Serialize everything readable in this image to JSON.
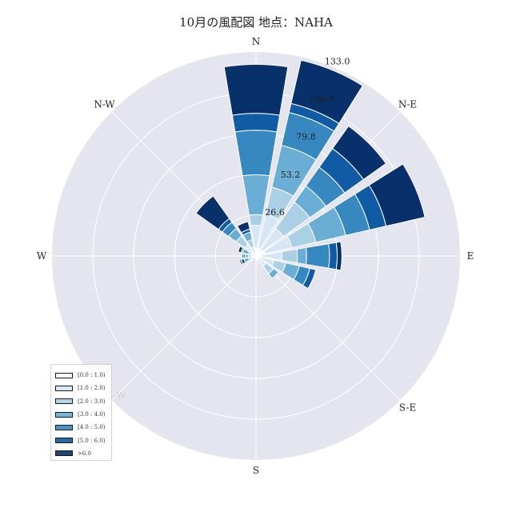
{
  "title": "10月の風配図 地点：NAHA",
  "chart_data": {
    "type": "windrose",
    "title": "10月の風配図 地点：NAHA",
    "direction_labels": [
      "N",
      "N-E",
      "E",
      "S-E",
      "S",
      "S-W",
      "W",
      "N-W"
    ],
    "radial_ticks": [
      26.6,
      53.2,
      79.8,
      106.4,
      133.0
    ],
    "rmax": 133.0,
    "grid": true,
    "legend_position": "lower-left",
    "bins": [
      "[0.0 : 1.0)",
      "[1.0 : 2.0)",
      "[2.0 : 3.0)",
      "[3.0 : 4.0)",
      "[4.0 : 5.0)",
      "[5.0 : 6.0)",
      ">6.0"
    ],
    "colors": [
      "#f7fbff",
      "#d1e3f3",
      "#9ac8e1",
      "#529dcc",
      "#1c6aaf",
      "#0b3b7a",
      "#08306b"
    ],
    "bin_colors": [
      "#f7fbff",
      "#d6e6f4",
      "#abd0e6",
      "#6aaed6",
      "#3787c0",
      "#105ba4",
      "#08306b"
    ],
    "sectors": [
      {
        "direction_deg": 0.0,
        "cumulative": [
          5,
          20,
          27,
          53,
          82,
          93,
          125
        ]
      },
      {
        "direction_deg": 22.5,
        "cumulative": [
          5,
          28,
          46,
          74,
          96,
          102,
          131
        ]
      },
      {
        "direction_deg": 45.0,
        "cumulative": [
          5,
          22,
          43,
          56,
          71,
          86,
          104
        ]
      },
      {
        "direction_deg": 67.5,
        "cumulative": [
          6,
          24,
          40,
          60,
          76,
          87,
          113
        ]
      },
      {
        "direction_deg": 90.0,
        "cumulative": [
          4,
          17,
          27,
          33,
          48,
          53,
          56
        ]
      },
      {
        "direction_deg": 112.5,
        "cumulative": [
          3,
          12,
          20,
          29,
          36,
          40,
          40
        ]
      },
      {
        "direction_deg": 135.0,
        "cumulative": [
          2,
          8,
          14,
          18,
          18,
          18,
          18
        ]
      },
      {
        "direction_deg": 157.5,
        "cumulative": [
          1,
          2,
          3,
          3,
          3,
          3,
          3
        ]
      },
      {
        "direction_deg": 180.0,
        "cumulative": [
          1,
          1,
          1,
          1,
          1,
          1,
          1
        ]
      },
      {
        "direction_deg": 202.5,
        "cumulative": [
          1,
          1,
          1,
          1,
          1,
          1,
          1
        ]
      },
      {
        "direction_deg": 225.0,
        "cumulative": [
          1,
          2,
          2,
          2,
          3,
          3,
          3
        ]
      },
      {
        "direction_deg": 247.5,
        "cumulative": [
          1,
          3,
          5,
          8,
          8,
          10,
          11
        ]
      },
      {
        "direction_deg": 270.0,
        "cumulative": [
          1,
          3,
          5,
          7,
          7,
          8,
          9
        ]
      },
      {
        "direction_deg": 292.5,
        "cumulative": [
          1,
          3,
          5,
          9,
          10,
          10,
          12
        ]
      },
      {
        "direction_deg": 315.0,
        "cumulative": [
          3,
          9,
          16,
          22,
          27,
          30,
          48
        ]
      },
      {
        "direction_deg": 337.5,
        "cumulative": [
          2,
          6,
          11,
          16,
          16,
          18,
          23
        ]
      }
    ]
  }
}
